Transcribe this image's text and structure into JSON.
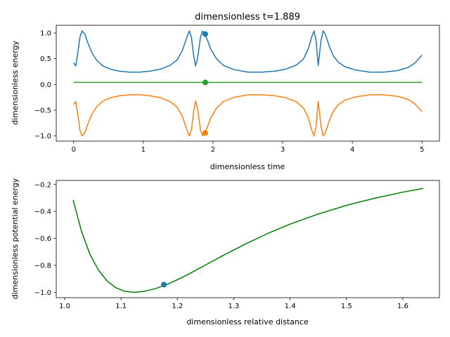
{
  "chart_data": [
    {
      "type": "line",
      "title": "dimensionless t=1.889",
      "xlabel": "dimensionless time",
      "ylabel": "dimensionless energy",
      "xlim": [
        -0.25,
        5.25
      ],
      "ylim": [
        -1.1,
        1.15
      ],
      "xticks": [
        0,
        1,
        2,
        3,
        4,
        5
      ],
      "xtick_labels": [
        "0",
        "1",
        "2",
        "3",
        "4",
        "5"
      ],
      "yticks": [
        -1.0,
        -0.5,
        0.0,
        0.5,
        1.0
      ],
      "ytick_labels": [
        "−1.0",
        "−0.5",
        "0.0",
        "0.5",
        "1.0"
      ],
      "current_t": 1.889,
      "series": [
        {
          "color": "#1f77b4",
          "x": [
            0.0,
            0.03,
            0.06,
            0.09,
            0.12,
            0.16,
            0.2,
            0.26,
            0.33,
            0.42,
            0.52,
            0.65,
            0.8,
            0.95,
            1.1,
            1.25,
            1.38,
            1.48,
            1.56,
            1.62,
            1.66,
            1.69,
            1.72,
            1.75,
            1.78,
            1.82,
            1.85,
            1.88,
            1.92,
            1.97,
            2.05,
            2.15,
            2.3,
            2.5,
            2.7,
            2.9,
            3.05,
            3.2,
            3.3,
            3.37,
            3.42,
            3.45,
            3.48,
            3.51,
            3.55,
            3.58,
            3.61,
            3.64,
            3.68,
            3.73,
            3.8,
            3.9,
            4.05,
            4.25,
            4.45,
            4.65,
            4.8,
            4.9,
            5.0
          ],
          "y": [
            0.42,
            0.36,
            0.62,
            0.92,
            1.04,
            0.98,
            0.82,
            0.62,
            0.47,
            0.36,
            0.3,
            0.26,
            0.24,
            0.24,
            0.26,
            0.3,
            0.37,
            0.47,
            0.66,
            0.9,
            1.04,
            0.92,
            0.58,
            0.36,
            0.52,
            0.92,
            1.04,
            0.98,
            0.86,
            0.68,
            0.5,
            0.37,
            0.29,
            0.24,
            0.24,
            0.26,
            0.3,
            0.38,
            0.5,
            0.7,
            0.94,
            1.04,
            0.85,
            0.37,
            0.85,
            1.04,
            0.98,
            0.86,
            0.7,
            0.55,
            0.43,
            0.34,
            0.28,
            0.24,
            0.24,
            0.27,
            0.33,
            0.42,
            0.57
          ]
        },
        {
          "color": "#ff7f0e",
          "x": [
            0.0,
            0.03,
            0.06,
            0.09,
            0.12,
            0.16,
            0.2,
            0.26,
            0.33,
            0.42,
            0.52,
            0.65,
            0.8,
            0.95,
            1.1,
            1.25,
            1.38,
            1.48,
            1.56,
            1.62,
            1.66,
            1.69,
            1.72,
            1.75,
            1.78,
            1.82,
            1.85,
            1.88,
            1.92,
            1.97,
            2.05,
            2.15,
            2.3,
            2.5,
            2.7,
            2.9,
            3.05,
            3.2,
            3.3,
            3.37,
            3.42,
            3.45,
            3.48,
            3.51,
            3.55,
            3.58,
            3.61,
            3.64,
            3.68,
            3.73,
            3.8,
            3.9,
            4.05,
            4.25,
            4.45,
            4.65,
            4.8,
            4.9,
            5.0
          ],
          "y": [
            -0.39,
            -0.33,
            -0.59,
            -0.89,
            -1.0,
            -0.94,
            -0.78,
            -0.58,
            -0.43,
            -0.32,
            -0.26,
            -0.22,
            -0.2,
            -0.2,
            -0.22,
            -0.26,
            -0.33,
            -0.43,
            -0.62,
            -0.86,
            -1.0,
            -0.88,
            -0.54,
            -0.32,
            -0.48,
            -0.88,
            -1.0,
            -0.94,
            -0.82,
            -0.64,
            -0.46,
            -0.33,
            -0.25,
            -0.2,
            -0.2,
            -0.22,
            -0.26,
            -0.34,
            -0.46,
            -0.66,
            -0.9,
            -1.0,
            -0.81,
            -0.33,
            -0.81,
            -1.0,
            -0.94,
            -0.82,
            -0.66,
            -0.51,
            -0.39,
            -0.3,
            -0.24,
            -0.2,
            -0.2,
            -0.23,
            -0.29,
            -0.38,
            -0.53
          ]
        },
        {
          "color": "#2ca02c",
          "x": [
            0.0,
            5.0
          ],
          "y": [
            0.04,
            0.04
          ]
        }
      ],
      "markers": [
        {
          "x": 1.889,
          "y": 0.98,
          "color": "#1f77b4"
        },
        {
          "x": 1.889,
          "y": -0.94,
          "color": "#ff7f0e"
        },
        {
          "x": 1.889,
          "y": 0.04,
          "color": "#2ca02c"
        }
      ]
    },
    {
      "type": "line",
      "title": "",
      "xlabel": "dimensionless relative distance",
      "ylabel": "dimensionless potential energy",
      "xlim": [
        0.985,
        1.665
      ],
      "ylim": [
        -1.04,
        -0.17
      ],
      "xticks": [
        1.0,
        1.1,
        1.2,
        1.3,
        1.4,
        1.5,
        1.6
      ],
      "xtick_labels": [
        "1.0",
        "1.1",
        "1.2",
        "1.3",
        "1.4",
        "1.5",
        "1.6"
      ],
      "yticks": [
        -1.0,
        -0.8,
        -0.6,
        -0.4,
        -0.2
      ],
      "ytick_labels": [
        "−1.0",
        "−0.8",
        "−0.6",
        "−0.4",
        "−0.2"
      ],
      "series": [
        {
          "color": "#008000",
          "x": [
            1.015,
            1.03,
            1.045,
            1.06,
            1.075,
            1.09,
            1.105,
            1.122,
            1.14,
            1.16,
            1.18,
            1.2,
            1.22,
            1.25,
            1.28,
            1.32,
            1.36,
            1.4,
            1.45,
            1.5,
            1.55,
            1.6,
            1.636
          ],
          "y": [
            -0.316,
            -0.55,
            -0.72,
            -0.836,
            -0.915,
            -0.964,
            -0.991,
            -1.0,
            -0.994,
            -0.974,
            -0.944,
            -0.907,
            -0.865,
            -0.797,
            -0.729,
            -0.643,
            -0.564,
            -0.494,
            -0.419,
            -0.355,
            -0.302,
            -0.257,
            -0.229
          ]
        }
      ],
      "markers": [
        {
          "x": 1.176,
          "y": -0.943,
          "color": "#1f77b4"
        }
      ]
    }
  ]
}
